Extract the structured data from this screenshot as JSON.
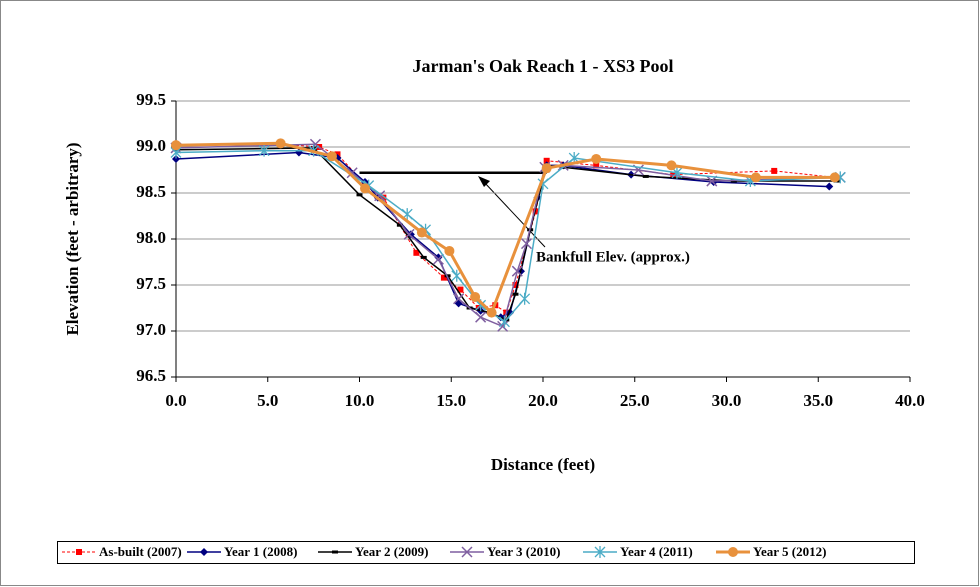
{
  "chart_data": {
    "type": "line",
    "title": "Jarman's Oak Reach 1 - XS3 Pool",
    "x_label": "Distance (feet)",
    "y_label": "Elevation (feet - arbitrary)",
    "annotation": "Bankfull Elev. (approx.)",
    "reference_line": {
      "x": [
        10,
        20.2
      ],
      "y": 98.72,
      "color": "#000000"
    },
    "xlim": [
      0,
      40
    ],
    "xticks": [
      {
        "value": 0,
        "label": "0.0"
      },
      {
        "value": 5,
        "label": "5.0"
      },
      {
        "value": 10,
        "label": "10.0"
      },
      {
        "value": 15,
        "label": "15.0"
      },
      {
        "value": 20,
        "label": "20.0"
      },
      {
        "value": 25,
        "label": "25.0"
      },
      {
        "value": 30,
        "label": "30.0"
      },
      {
        "value": 35,
        "label": "35.0"
      },
      {
        "value": 40,
        "label": "40.0"
      }
    ],
    "ylim": [
      96.5,
      99.5
    ],
    "yticks": [
      96.5,
      {
        "value": 97,
        "label": "97.0"
      },
      97.5,
      {
        "value": 98,
        "label": "98.0"
      },
      98.5,
      {
        "value": 99,
        "label": "99.0"
      },
      99.5
    ],
    "grid": true,
    "legend": "bottom",
    "series": [
      {
        "name": "As-built (2007)",
        "color": "#ff0000",
        "marker": "square",
        "dash": true,
        "x": [
          0,
          5.7,
          7.8,
          8.8,
          10.3,
          11.3,
          13.1,
          14.6,
          15.5,
          16.5,
          17.4,
          18.0,
          18.5,
          19.6,
          20.2,
          22.9,
          27.1,
          32.6,
          35.9
        ],
        "values": [
          99.02,
          99.03,
          99.0,
          98.92,
          98.6,
          98.45,
          97.85,
          97.58,
          97.45,
          97.25,
          97.28,
          97.2,
          97.5,
          98.3,
          98.85,
          98.8,
          98.7,
          98.74,
          98.67
        ]
      },
      {
        "name": "Year 1 (2008)",
        "color": "#000080",
        "marker": "diamond",
        "x": [
          0,
          6.7,
          8.8,
          10.3,
          11.0,
          12.8,
          14.3,
          15.4,
          16.6,
          17.7,
          18.2,
          18.8,
          19.7,
          20.2,
          21.1,
          24.8,
          29.3,
          35.6
        ],
        "values": [
          98.87,
          98.94,
          98.88,
          98.62,
          98.45,
          98.05,
          97.8,
          97.3,
          97.22,
          97.15,
          97.2,
          97.65,
          98.45,
          98.8,
          98.8,
          98.7,
          98.62,
          98.57
        ]
      },
      {
        "name": "Year 2 (2009)",
        "color": "#000000",
        "marker": "dash",
        "x": [
          0,
          7.5,
          10.0,
          12.2,
          13.5,
          14.8,
          16.0,
          17.1,
          18.0,
          18.5,
          19.3,
          20.2,
          21.1,
          25.6,
          30.4,
          36.0
        ],
        "values": [
          98.97,
          98.99,
          98.48,
          98.15,
          97.8,
          97.6,
          97.25,
          97.2,
          97.12,
          97.4,
          98.1,
          98.8,
          98.78,
          98.68,
          98.63,
          98.63
        ]
      },
      {
        "name": "Year 3 (2010)",
        "color": "#7f5fa0",
        "marker": "x",
        "x": [
          0,
          7.6,
          9.6,
          11.1,
          12.7,
          14.3,
          15.4,
          16.6,
          17.8,
          18.6,
          19.1,
          20.1,
          21.1,
          25.2,
          29.2,
          36.2
        ],
        "values": [
          98.99,
          99.03,
          98.72,
          98.47,
          98.05,
          97.78,
          97.35,
          97.15,
          97.05,
          97.65,
          97.95,
          98.78,
          98.8,
          98.75,
          98.63,
          98.67
        ]
      },
      {
        "name": "Year 4 (2011)",
        "color": "#4bacc6",
        "marker": "star",
        "x": [
          0,
          4.8,
          7.5,
          10.5,
          12.6,
          13.6,
          15.3,
          16.6,
          17.9,
          19.0,
          20.0,
          21.7,
          27.3,
          31.3,
          36.2
        ],
        "values": [
          98.94,
          98.96,
          98.96,
          98.58,
          98.27,
          98.1,
          97.6,
          97.28,
          97.1,
          97.35,
          98.6,
          98.88,
          98.72,
          98.63,
          98.67
        ]
      },
      {
        "name": "Year 5 (2012)",
        "color": "#e8913c",
        "marker": "circle",
        "width": 3,
        "x": [
          0,
          5.7,
          8.5,
          10.3,
          13.4,
          14.9,
          16.3,
          17.2,
          20.2,
          22.9,
          27.0,
          31.6,
          35.9
        ],
        "values": [
          99.02,
          99.04,
          98.9,
          98.55,
          98.07,
          97.87,
          97.37,
          97.2,
          98.77,
          98.87,
          98.8,
          98.67,
          98.67
        ]
      }
    ]
  }
}
